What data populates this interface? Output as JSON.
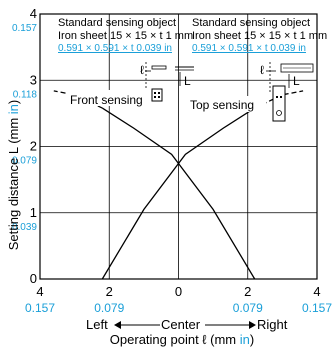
{
  "chart_data": {
    "type": "line",
    "xlabel_main": "Operating point ℓ (mm ",
    "xlabel_unit": "in",
    "xlabel_end": ")",
    "ylabel_main": "Setting distance L (mm ",
    "ylabel_unit": "in",
    "ylabel_end": ")",
    "xlim": [
      -4,
      4
    ],
    "ylim": [
      0,
      4
    ],
    "grid": true,
    "x_ticks": [
      {
        "value": -4,
        "mm": "4",
        "in": "0.157"
      },
      {
        "value": -2,
        "mm": "2",
        "in": "0.079"
      },
      {
        "value": 0,
        "mm": "0",
        "in": ""
      },
      {
        "value": 2,
        "mm": "2",
        "in": "0.079"
      },
      {
        "value": 4,
        "mm": "4",
        "in": "0.157"
      }
    ],
    "y_ticks": [
      {
        "value": 0,
        "mm": "0",
        "in": ""
      },
      {
        "value": 1,
        "mm": "1",
        "in": "0.039"
      },
      {
        "value": 2,
        "mm": "2",
        "in": "0.079"
      },
      {
        "value": 3,
        "mm": "3",
        "in": "0.118"
      },
      {
        "value": 4,
        "mm": "4",
        "in": "0.157"
      }
    ],
    "direction_labels": {
      "left": "Left",
      "center": "Center",
      "right": "Right"
    },
    "series": [
      {
        "name": "Front sensing",
        "style": "solid",
        "x": [
          2.2,
          1.0,
          -0.2,
          -1.3,
          -2.2,
          -3.0,
          -3.6
        ],
        "y": [
          0.0,
          1.05,
          1.88,
          2.28,
          2.58,
          2.78,
          2.84
        ]
      },
      {
        "name": "Top sensing",
        "style": "solid",
        "x": [
          -2.2,
          -1.0,
          0.2,
          1.3,
          2.2,
          3.0,
          3.6
        ],
        "y": [
          0.0,
          1.05,
          1.88,
          2.28,
          2.58,
          2.78,
          2.84
        ]
      }
    ],
    "annotations": {
      "left_note": {
        "title": "Standard sensing object",
        "line1": "Iron sheet 15 × 15 × t 1 mm",
        "line2": "0.591 × 0.591 × t 0.039 in"
      },
      "right_note": {
        "title": "Standard sensing object",
        "line1": "Iron sheet 15 × 15 × t 1 mm",
        "line2": "0.591 × 0.591 × t 0.039 in"
      },
      "front_label": "Front sensing",
      "top_label": "Top sensing",
      "ell": "ℓ",
      "L": "L"
    }
  }
}
